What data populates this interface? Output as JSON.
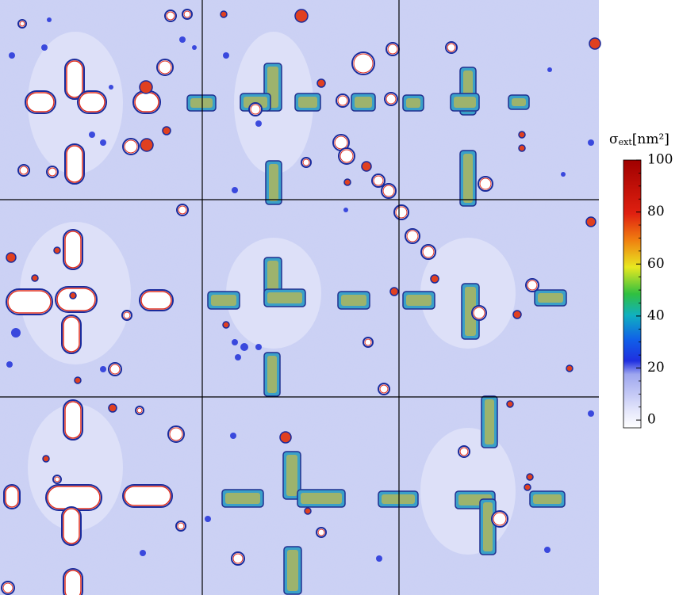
{
  "chart_data": {
    "type": "image",
    "colorbar": {
      "symbol": "σ",
      "subscript": "ext",
      "unit": "[nm²]",
      "ylim": [
        -3,
        100
      ],
      "yticks": [
        0,
        20,
        40,
        60,
        80,
        100
      ],
      "minor_ticks": [
        5,
        10,
        15,
        25,
        30,
        35,
        45,
        50,
        55,
        65,
        70,
        75,
        85,
        90,
        95
      ]
    }
  }
}
